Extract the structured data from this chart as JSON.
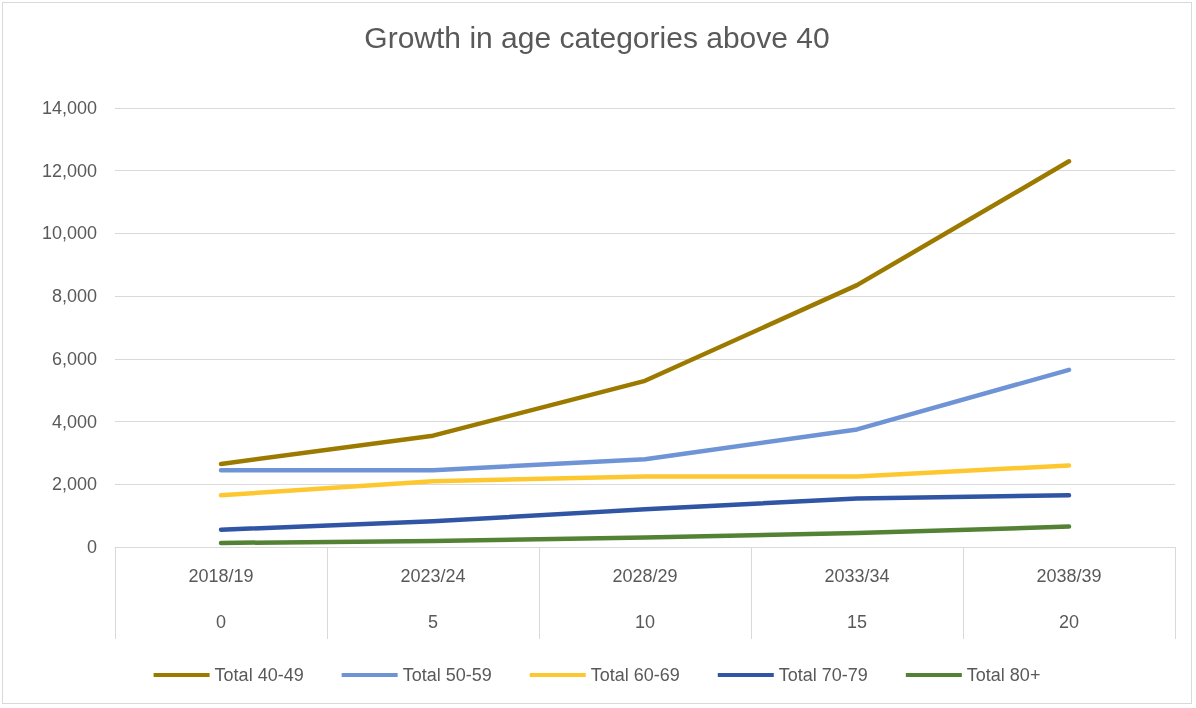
{
  "chart_data": {
    "type": "line",
    "title": "Growth in age categories above 40",
    "categories": [
      "2018/19\n0",
      "2023/24\n5",
      "2028/29\n10",
      "2033/34\n15",
      "2038/39\n20"
    ],
    "series": [
      {
        "name": "Total 40-49",
        "color": "#9c7a00",
        "values": [
          2650,
          3550,
          5300,
          8350,
          12300
        ]
      },
      {
        "name": "Total 50-59",
        "color": "#6f94d6",
        "values": [
          2450,
          2450,
          2800,
          3750,
          5650
        ]
      },
      {
        "name": "Total 60-69",
        "color": "#fdc82f",
        "values": [
          1650,
          2100,
          2250,
          2250,
          2600
        ]
      },
      {
        "name": "Total 70-79",
        "color": "#2f55a4",
        "values": [
          550,
          820,
          1200,
          1550,
          1650
        ]
      },
      {
        "name": "Total 80+",
        "color": "#548235",
        "values": [
          130,
          190,
          300,
          450,
          650
        ]
      }
    ],
    "ylim": [
      0,
      14000
    ],
    "yticks": [
      0,
      {
        "value": 2000,
        "label": "2,000"
      },
      {
        "value": 4000,
        "label": "4,000"
      },
      {
        "value": 6000,
        "label": "6,000"
      },
      {
        "value": 8000,
        "label": "8,000"
      },
      {
        "value": 10000,
        "label": "10,000"
      },
      {
        "value": 12000,
        "label": "12,000"
      },
      {
        "value": 14000,
        "label": "14,000"
      }
    ],
    "grid": "y",
    "legend": "bottom",
    "marker": "none",
    "line_style": "solid"
  }
}
